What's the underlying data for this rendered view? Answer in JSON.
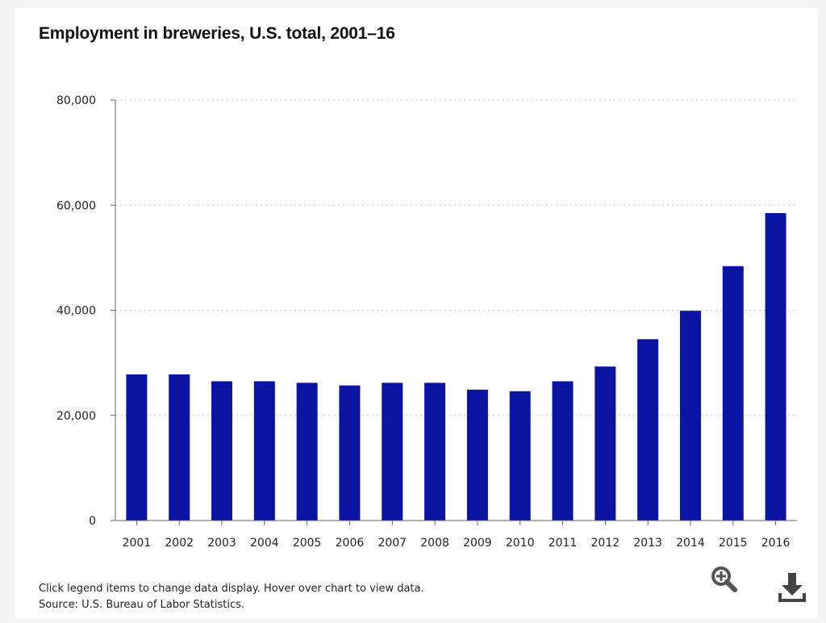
{
  "chart_data": {
    "type": "bar",
    "title": "Employment in breweries, U.S. total, 2001–16",
    "categories": [
      "2001",
      "2002",
      "2003",
      "2004",
      "2005",
      "2006",
      "2007",
      "2008",
      "2009",
      "2010",
      "2011",
      "2012",
      "2013",
      "2014",
      "2015",
      "2016"
    ],
    "values": [
      27800,
      27800,
      26500,
      26500,
      26200,
      25700,
      26200,
      26200,
      24900,
      24600,
      26500,
      29300,
      34500,
      39900,
      48400,
      58500
    ],
    "ylim": [
      0,
      80000
    ],
    "yticks": [
      0,
      20000,
      40000,
      60000,
      80000
    ],
    "ytick_labels": [
      "0",
      "20,000",
      "40,000",
      "60,000",
      "80,000"
    ],
    "grid": "horizontal-dotted",
    "bar_color": "#0a14a0",
    "xlabel": "",
    "ylabel": ""
  },
  "footer": {
    "note": "Click legend items to change data display. Hover over chart to view data.",
    "source": "Source: U.S. Bureau of Labor Statistics."
  },
  "tools": {
    "zoom_icon": "zoom-in-icon",
    "download_icon": "download-icon"
  }
}
